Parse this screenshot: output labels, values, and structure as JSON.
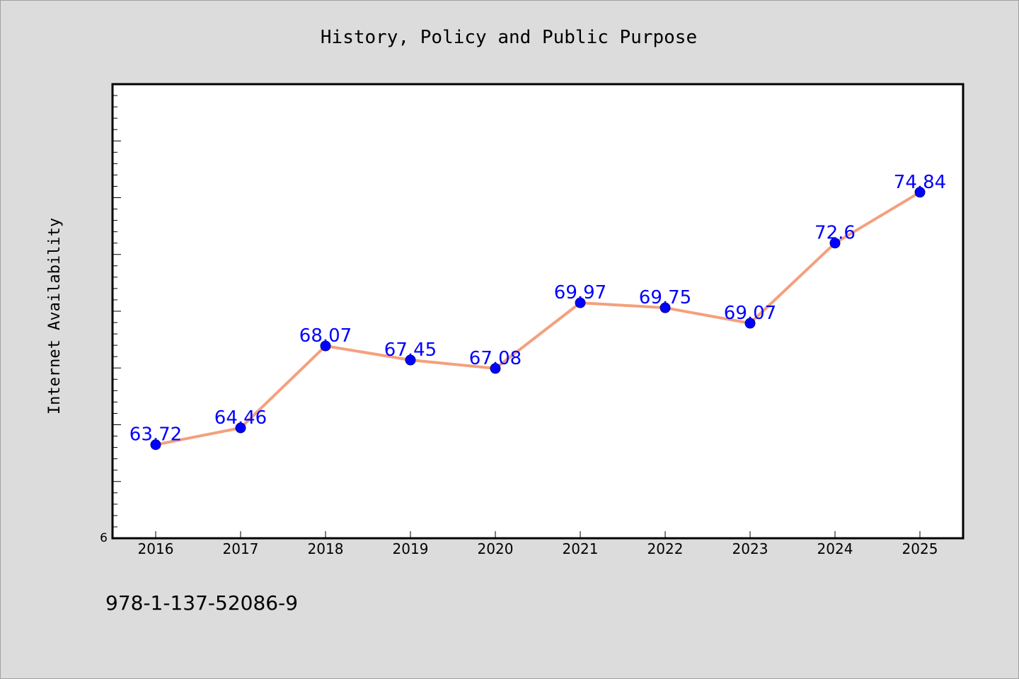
{
  "chart_data": {
    "type": "line",
    "title": "History, Policy and Public Purpose",
    "ylabel": "Internet Availability",
    "xlabel": "",
    "categories": [
      "2016",
      "2017",
      "2018",
      "2019",
      "2020",
      "2021",
      "2022",
      "2023",
      "2024",
      "2025"
    ],
    "series": [
      {
        "values": [
          63.72,
          64.46,
          68.07,
          67.45,
          67.08,
          69.97,
          69.75,
          69.07,
          72.6,
          74.84
        ],
        "data_labels": [
          "63.72",
          "64.46",
          "68.07",
          "67.45",
          "67.08",
          "69.97",
          "69.75",
          "69.07",
          "72.6",
          "74.84"
        ]
      }
    ],
    "y_tick_labels": [
      "6"
    ],
    "ylim": [
      59.6,
      79.6
    ],
    "grid": false,
    "colors": {
      "line": "#f4a07e",
      "marker": "#0000ff",
      "label": "#0000ff",
      "background": "#dcdcdc",
      "plot_bg": "#ffffff"
    }
  },
  "footer": {
    "isbn": "978-1-137-52086-9"
  }
}
